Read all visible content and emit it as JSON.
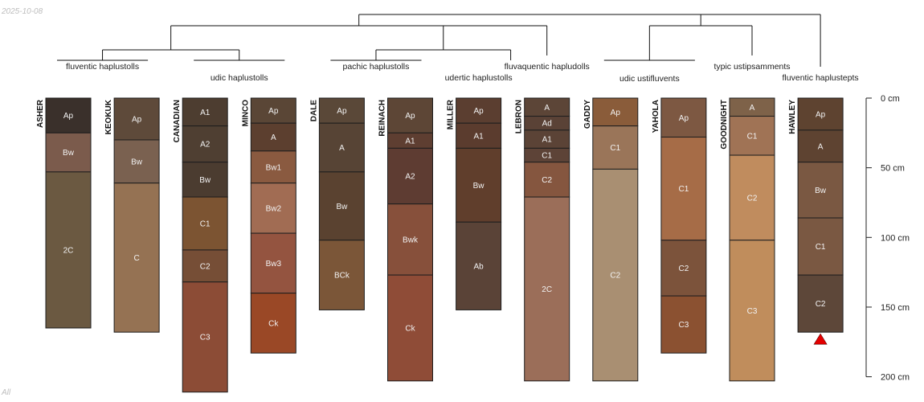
{
  "header": {
    "date": "2025-10-08",
    "footnote": "All"
  },
  "chart_data": {
    "type": "soil-profile-sketch",
    "depth_unit": "cm",
    "depth_range": [
      0,
      200
    ],
    "depth_ticks": [
      {
        "value": 0,
        "label": "0 cm"
      },
      {
        "value": 50,
        "label": "50 cm"
      },
      {
        "value": 100,
        "label": "100 cm"
      },
      {
        "value": 150,
        "label": "150 cm"
      },
      {
        "value": 200,
        "label": "200 cm"
      }
    ],
    "profiles": [
      {
        "name": "ASHER",
        "group": "fluventic haplustolls",
        "horizons": [
          {
            "name": "Ap",
            "top": 0,
            "bottom": 25,
            "color": "#3a302b"
          },
          {
            "name": "Bw",
            "top": 25,
            "bottom": 53,
            "color": "#7b5b4c"
          },
          {
            "name": "2C",
            "top": 53,
            "bottom": 165,
            "color": "#6b5941"
          }
        ]
      },
      {
        "name": "KEOKUK",
        "group": "fluventic haplustolls",
        "horizons": [
          {
            "name": "Ap",
            "top": 0,
            "bottom": 30,
            "color": "#5e4a3a"
          },
          {
            "name": "Bw",
            "top": 30,
            "bottom": 61,
            "color": "#7a6150"
          },
          {
            "name": "C",
            "top": 61,
            "bottom": 168,
            "color": "#957253"
          }
        ]
      },
      {
        "name": "CANADIAN",
        "group": "udic haplustolls",
        "horizons": [
          {
            "name": "A1",
            "top": 0,
            "bottom": 20,
            "color": "#4d3d30"
          },
          {
            "name": "A2",
            "top": 20,
            "bottom": 46,
            "color": "#4f3f32"
          },
          {
            "name": "Bw",
            "top": 46,
            "bottom": 71,
            "color": "#4b3c30"
          },
          {
            "name": "C1",
            "top": 71,
            "bottom": 109,
            "color": "#7c5432"
          },
          {
            "name": "C2",
            "top": 109,
            "bottom": 132,
            "color": "#764e36"
          },
          {
            "name": "C3",
            "top": 132,
            "bottom": 211,
            "color": "#8c4c36"
          }
        ]
      },
      {
        "name": "MINCO",
        "group": "udic haplustolls",
        "horizons": [
          {
            "name": "Ap",
            "top": 0,
            "bottom": 18,
            "color": "#5a4636"
          },
          {
            "name": "A",
            "top": 18,
            "bottom": 38,
            "color": "#5c3f2f"
          },
          {
            "name": "Bw1",
            "top": 38,
            "bottom": 61,
            "color": "#8a5a40"
          },
          {
            "name": "Bw2",
            "top": 61,
            "bottom": 97,
            "color": "#a16c53"
          },
          {
            "name": "Bw3",
            "top": 97,
            "bottom": 140,
            "color": "#945440"
          },
          {
            "name": "Ck",
            "top": 140,
            "bottom": 183,
            "color": "#9a4826"
          }
        ]
      },
      {
        "name": "DALE",
        "group": "pachic haplustolls",
        "horizons": [
          {
            "name": "Ap",
            "top": 0,
            "bottom": 18,
            "color": "#5a4838"
          },
          {
            "name": "A",
            "top": 18,
            "bottom": 53,
            "color": "#574435"
          },
          {
            "name": "Bw",
            "top": 53,
            "bottom": 102,
            "color": "#5a4230"
          },
          {
            "name": "BCk",
            "top": 102,
            "bottom": 152,
            "color": "#7b5638"
          }
        ]
      },
      {
        "name": "REINACH",
        "group": "pachic haplustolls",
        "horizons": [
          {
            "name": "Ap",
            "top": 0,
            "bottom": 25,
            "color": "#5d4636"
          },
          {
            "name": "A1",
            "top": 25,
            "bottom": 36,
            "color": "#5e3e31"
          },
          {
            "name": "A2",
            "top": 36,
            "bottom": 76,
            "color": "#5e3c32"
          },
          {
            "name": "Bwk",
            "top": 76,
            "bottom": 127,
            "color": "#87503b"
          },
          {
            "name": "Ck",
            "top": 127,
            "bottom": 203,
            "color": "#8f4c37"
          }
        ]
      },
      {
        "name": "MILLER",
        "group": "udertic haplustolls",
        "horizons": [
          {
            "name": "Ap",
            "top": 0,
            "bottom": 18,
            "color": "#5b3e30"
          },
          {
            "name": "A1",
            "top": 18,
            "bottom": 36,
            "color": "#5b3c2e"
          },
          {
            "name": "Bw",
            "top": 36,
            "bottom": 89,
            "color": "#603e2c"
          },
          {
            "name": "Ab",
            "top": 89,
            "bottom": 152,
            "color": "#5a4337"
          }
        ]
      },
      {
        "name": "LEBRON",
        "group": "fluvaquentic hapludolls",
        "horizons": [
          {
            "name": "A",
            "top": 0,
            "bottom": 13,
            "color": "#5c4537"
          },
          {
            "name": "Ad",
            "top": 13,
            "bottom": 23,
            "color": "#5a4236"
          },
          {
            "name": "A1",
            "top": 23,
            "bottom": 36,
            "color": "#5b4336"
          },
          {
            "name": "C1",
            "top": 36,
            "bottom": 46,
            "color": "#5d4337"
          },
          {
            "name": "C2",
            "top": 46,
            "bottom": 71,
            "color": "#85563f"
          },
          {
            "name": "2C",
            "top": 71,
            "bottom": 203,
            "color": "#9b6e59"
          }
        ]
      },
      {
        "name": "GADDY",
        "group": "udic ustifluvents",
        "horizons": [
          {
            "name": "Ap",
            "top": 0,
            "bottom": 20,
            "color": "#8a5c3a"
          },
          {
            "name": "C1",
            "top": 20,
            "bottom": 51,
            "color": "#9a7559"
          },
          {
            "name": "C2",
            "top": 51,
            "bottom": 203,
            "color": "#a98f72"
          }
        ]
      },
      {
        "name": "YAHOLA",
        "group": "udic ustifluvents",
        "horizons": [
          {
            "name": "Ap",
            "top": 0,
            "bottom": 28,
            "color": "#7d5842"
          },
          {
            "name": "C1",
            "top": 28,
            "bottom": 102,
            "color": "#a66c47"
          },
          {
            "name": "C2",
            "top": 102,
            "bottom": 142,
            "color": "#7c533b"
          },
          {
            "name": "C3",
            "top": 142,
            "bottom": 183,
            "color": "#8b5131"
          }
        ]
      },
      {
        "name": "GOODNIGHT",
        "group": "typic ustipsamments",
        "horizons": [
          {
            "name": "A",
            "top": 0,
            "bottom": 13,
            "color": "#7e6249"
          },
          {
            "name": "C1",
            "top": 13,
            "bottom": 41,
            "color": "#a07355"
          },
          {
            "name": "C2",
            "top": 41,
            "bottom": 102,
            "color": "#c08c5e"
          },
          {
            "name": "C3",
            "top": 102,
            "bottom": 203,
            "color": "#c08d5c"
          }
        ]
      },
      {
        "name": "HAWLEY",
        "group": "fluventic haplustepts",
        "horizons": [
          {
            "name": "Ap",
            "top": 0,
            "bottom": 23,
            "color": "#5e4330"
          },
          {
            "name": "A",
            "top": 23,
            "bottom": 46,
            "color": "#5e4331"
          },
          {
            "name": "Bw",
            "top": 46,
            "bottom": 86,
            "color": "#7a5842"
          },
          {
            "name": "C1",
            "top": 86,
            "bottom": 127,
            "color": "#7a5842"
          },
          {
            "name": "C2",
            "top": 127,
            "bottom": 168,
            "color": "#5d4739"
          }
        ]
      }
    ],
    "groups": [
      {
        "label": "fluventic haplustolls",
        "members": [
          0,
          1
        ]
      },
      {
        "label": "udic haplustolls",
        "members": [
          2,
          3
        ]
      },
      {
        "label": "pachic haplustolls",
        "members": [
          4,
          5
        ]
      },
      {
        "label": "udertic haplustolls",
        "members": [
          6
        ]
      },
      {
        "label": "fluvaquentic hapludolls",
        "members": [
          7
        ]
      },
      {
        "label": "udic ustifluvents",
        "members": [
          8,
          9
        ]
      },
      {
        "label": "typic ustipsamments",
        "members": [
          10
        ]
      },
      {
        "label": "fluventic haplustepts",
        "members": [
          11
        ]
      }
    ],
    "dendrogram": {
      "left": [
        [
          0,
          1
        ],
        [
          2,
          3
        ]
      ],
      "right": [
        [
          5,
          6
        ],
        7
      ]
    },
    "truncated_profile_marker": "HAWLEY"
  }
}
